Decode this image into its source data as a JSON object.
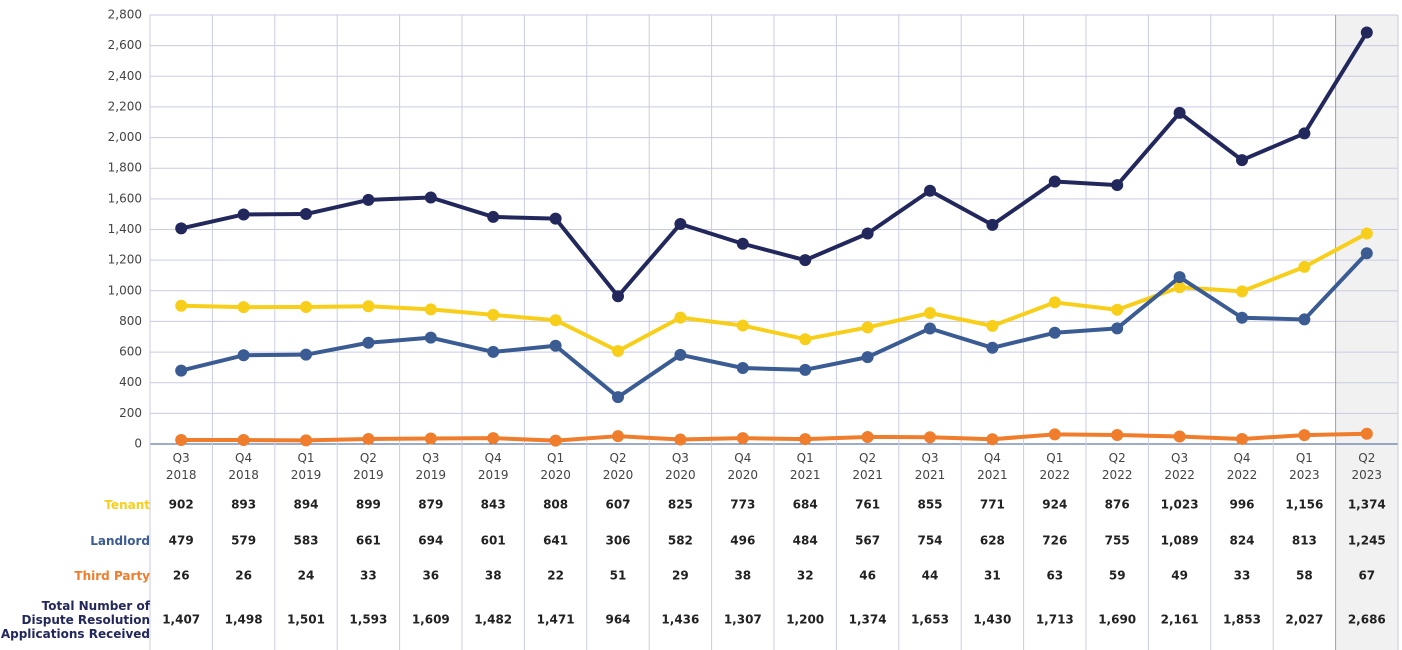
{
  "chart_data": {
    "type": "line",
    "categories": [
      "Q3 2018",
      "Q4 2018",
      "Q1 2019",
      "Q2 2019",
      "Q3 2019",
      "Q4 2019",
      "Q1 2020",
      "Q2 2020",
      "Q3 2020",
      "Q4 2020",
      "Q1 2021",
      "Q2 2021",
      "Q3 2021",
      "Q4 2021",
      "Q1 2022",
      "Q2 2022",
      "Q3 2022",
      "Q4 2022",
      "Q1 2023",
      "Q2 2023"
    ],
    "series": [
      {
        "name": "Tenant",
        "color": "#f7cf1b",
        "values": [
          902,
          893,
          894,
          899,
          879,
          843,
          808,
          607,
          825,
          773,
          684,
          761,
          855,
          771,
          924,
          876,
          1023,
          996,
          1156,
          1374
        ],
        "value_labels": [
          "902",
          "893",
          "894",
          "899",
          "879",
          "843",
          "808",
          "607",
          "825",
          "773",
          "684",
          "761",
          "855",
          "771",
          "924",
          "876",
          "1,023",
          "996",
          "1,156",
          "1,374"
        ]
      },
      {
        "name": "Landlord",
        "color": "#3b5b93",
        "values": [
          479,
          579,
          583,
          661,
          694,
          601,
          641,
          306,
          582,
          496,
          484,
          567,
          754,
          628,
          726,
          755,
          1089,
          824,
          813,
          1245
        ],
        "value_labels": [
          "479",
          "579",
          "583",
          "661",
          "694",
          "601",
          "641",
          "306",
          "582",
          "496",
          "484",
          "567",
          "754",
          "628",
          "726",
          "755",
          "1,089",
          "824",
          "813",
          "1,245"
        ]
      },
      {
        "name": "Third Party",
        "color": "#ef7d2c",
        "values": [
          26,
          26,
          24,
          33,
          36,
          38,
          22,
          51,
          29,
          38,
          32,
          46,
          44,
          31,
          63,
          59,
          49,
          33,
          58,
          67
        ]
      },
      {
        "name": "Total Number of Dispute Resolution Applications Received",
        "color": "#23285c",
        "values": [
          1407,
          1498,
          1501,
          1593,
          1609,
          1482,
          1471,
          964,
          1436,
          1307,
          1200,
          1374,
          1653,
          1430,
          1713,
          1690,
          2161,
          1853,
          2027,
          2686
        ],
        "value_labels": [
          "1,407",
          "1,498",
          "1,501",
          "1,593",
          "1,609",
          "1,482",
          "1,471",
          "964",
          "1,436",
          "1,307",
          "1,200",
          "1,374",
          "1,653",
          "1,430",
          "1,713",
          "1,690",
          "2,161",
          "1,853",
          "2,027",
          "2,686"
        ]
      }
    ],
    "ylim": [
      0,
      2800
    ],
    "yticks": [
      0,
      200,
      400,
      600,
      800,
      {
        "value": 1000,
        "label": "1,000"
      },
      {
        "value": 1200,
        "label": "1,200"
      },
      {
        "value": 1400,
        "label": "1,400"
      },
      {
        "value": 1600,
        "label": "1,600"
      },
      {
        "value": 1800,
        "label": "1,800"
      },
      {
        "value": 2000,
        "label": "2,000"
      },
      {
        "value": 2200,
        "label": "2,200"
      },
      {
        "value": 2400,
        "label": "2,400"
      },
      {
        "value": 2600,
        "label": "2,600"
      },
      {
        "value": 2800,
        "label": "2,800"
      }
    ],
    "grid": true
  }
}
